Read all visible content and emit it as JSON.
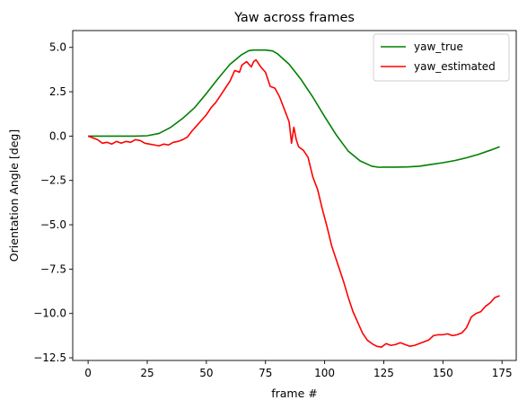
{
  "chart_data": {
    "type": "line",
    "title": "Yaw across frames",
    "xlabel": "frame #",
    "ylabel": "Orientation Angle [deg]",
    "xlim": [
      -6.5,
      181
    ],
    "ylim": [
      -12.65,
      5.95
    ],
    "xticks": [
      0,
      25,
      50,
      75,
      100,
      125,
      150,
      175
    ],
    "yticks": [
      -12.5,
      -10.0,
      -7.5,
      -5.0,
      -2.5,
      0.0,
      2.5,
      5.0
    ],
    "ytick_labels": [
      "−12.5",
      "−10.0",
      "−7.5",
      "−5.0",
      "−2.5",
      "0.0",
      "2.5",
      "5.0"
    ],
    "grid": false,
    "legend_position": "top-right",
    "series": [
      {
        "name": "yaw_true",
        "color": "#008000",
        "points": [
          [
            0,
            0.0
          ],
          [
            10,
            0.0
          ],
          [
            20,
            0.0
          ],
          [
            25,
            0.02
          ],
          [
            30,
            0.15
          ],
          [
            35,
            0.5
          ],
          [
            40,
            1.0
          ],
          [
            45,
            1.6
          ],
          [
            50,
            2.4
          ],
          [
            55,
            3.25
          ],
          [
            60,
            4.05
          ],
          [
            65,
            4.6
          ],
          [
            68,
            4.82
          ],
          [
            70,
            4.85
          ],
          [
            75,
            4.85
          ],
          [
            78,
            4.8
          ],
          [
            80,
            4.65
          ],
          [
            85,
            4.05
          ],
          [
            90,
            3.2
          ],
          [
            95,
            2.2
          ],
          [
            100,
            1.1
          ],
          [
            105,
            0.05
          ],
          [
            110,
            -0.85
          ],
          [
            115,
            -1.4
          ],
          [
            120,
            -1.7
          ],
          [
            123,
            -1.76
          ],
          [
            125,
            -1.75
          ],
          [
            130,
            -1.75
          ],
          [
            135,
            -1.74
          ],
          [
            140,
            -1.7
          ],
          [
            145,
            -1.6
          ],
          [
            150,
            -1.5
          ],
          [
            155,
            -1.38
          ],
          [
            160,
            -1.22
          ],
          [
            165,
            -1.03
          ],
          [
            170,
            -0.8
          ],
          [
            174,
            -0.6
          ]
        ]
      },
      {
        "name": "yaw_estimated",
        "color": "#ff0000",
        "points": [
          [
            0,
            0.0
          ],
          [
            2,
            -0.1
          ],
          [
            4,
            -0.2
          ],
          [
            6,
            -0.4
          ],
          [
            8,
            -0.35
          ],
          [
            10,
            -0.45
          ],
          [
            12,
            -0.3
          ],
          [
            14,
            -0.4
          ],
          [
            16,
            -0.3
          ],
          [
            18,
            -0.35
          ],
          [
            20,
            -0.2
          ],
          [
            22,
            -0.25
          ],
          [
            24,
            -0.4
          ],
          [
            26,
            -0.45
          ],
          [
            28,
            -0.5
          ],
          [
            30,
            -0.55
          ],
          [
            32,
            -0.45
          ],
          [
            34,
            -0.5
          ],
          [
            36,
            -0.35
          ],
          [
            38,
            -0.3
          ],
          [
            40,
            -0.2
          ],
          [
            42,
            -0.05
          ],
          [
            44,
            0.3
          ],
          [
            46,
            0.6
          ],
          [
            48,
            0.9
          ],
          [
            50,
            1.2
          ],
          [
            52,
            1.6
          ],
          [
            54,
            1.9
          ],
          [
            56,
            2.3
          ],
          [
            58,
            2.7
          ],
          [
            60,
            3.1
          ],
          [
            62,
            3.7
          ],
          [
            64,
            3.6
          ],
          [
            65,
            4.0
          ],
          [
            67,
            4.2
          ],
          [
            69,
            3.9
          ],
          [
            70,
            4.2
          ],
          [
            71,
            4.3
          ],
          [
            73,
            3.9
          ],
          [
            75,
            3.6
          ],
          [
            77,
            2.8
          ],
          [
            79,
            2.7
          ],
          [
            81,
            2.2
          ],
          [
            83,
            1.5
          ],
          [
            85,
            0.8
          ],
          [
            86,
            -0.4
          ],
          [
            87,
            0.5
          ],
          [
            88,
            -0.2
          ],
          [
            89,
            -0.6
          ],
          [
            91,
            -0.8
          ],
          [
            93,
            -1.2
          ],
          [
            95,
            -2.3
          ],
          [
            97,
            -3.0
          ],
          [
            99,
            -4.1
          ],
          [
            101,
            -5.1
          ],
          [
            103,
            -6.2
          ],
          [
            105,
            -7.0
          ],
          [
            108,
            -8.2
          ],
          [
            110,
            -9.1
          ],
          [
            112,
            -9.9
          ],
          [
            114,
            -10.5
          ],
          [
            116,
            -11.1
          ],
          [
            118,
            -11.5
          ],
          [
            120,
            -11.7
          ],
          [
            122,
            -11.85
          ],
          [
            124,
            -11.9
          ],
          [
            126,
            -11.7
          ],
          [
            128,
            -11.8
          ],
          [
            130,
            -11.75
          ],
          [
            132,
            -11.65
          ],
          [
            134,
            -11.75
          ],
          [
            136,
            -11.85
          ],
          [
            138,
            -11.8
          ],
          [
            140,
            -11.7
          ],
          [
            142,
            -11.6
          ],
          [
            144,
            -11.5
          ],
          [
            146,
            -11.25
          ],
          [
            148,
            -11.2
          ],
          [
            150,
            -11.2
          ],
          [
            152,
            -11.15
          ],
          [
            154,
            -11.25
          ],
          [
            156,
            -11.2
          ],
          [
            158,
            -11.1
          ],
          [
            160,
            -10.8
          ],
          [
            162,
            -10.2
          ],
          [
            164,
            -10.0
          ],
          [
            166,
            -9.9
          ],
          [
            168,
            -9.6
          ],
          [
            170,
            -9.4
          ],
          [
            172,
            -9.1
          ],
          [
            174,
            -9.0
          ]
        ]
      }
    ]
  }
}
